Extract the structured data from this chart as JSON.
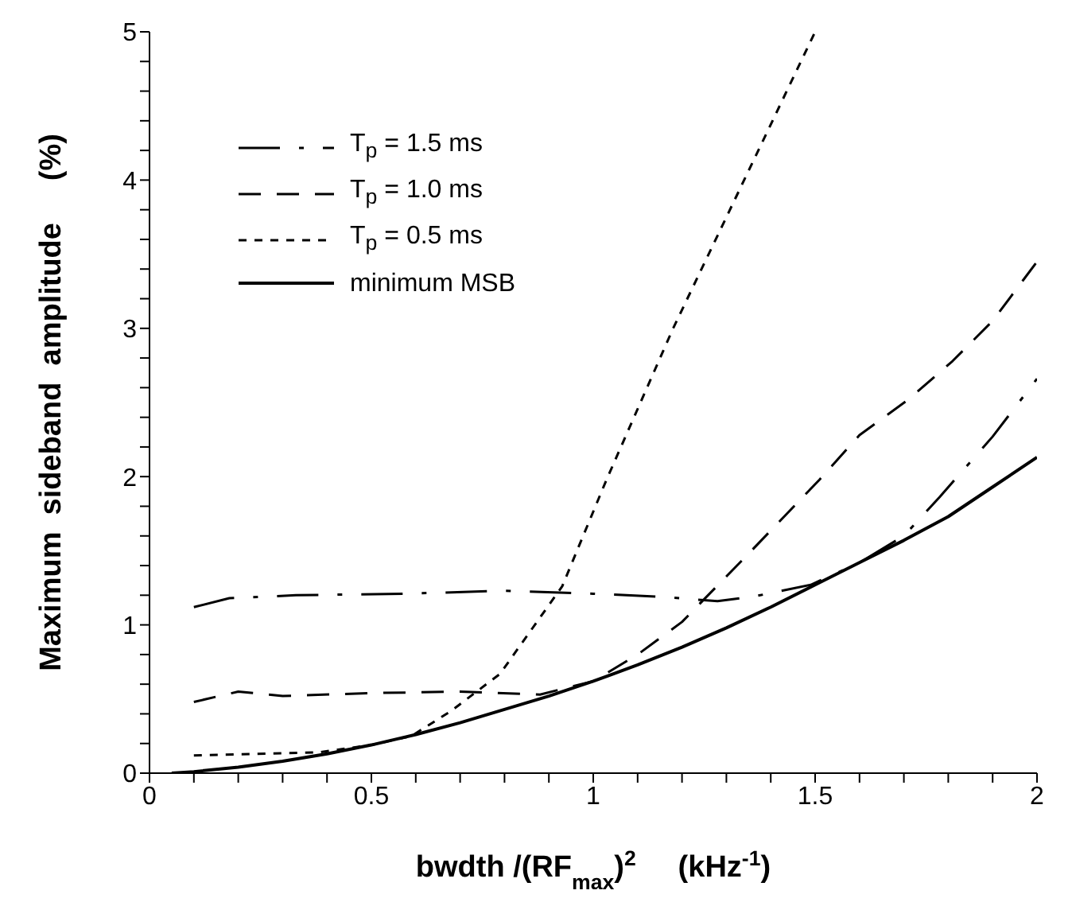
{
  "chart_data": {
    "type": "line",
    "xlabel": "bwdth /(RF$_{max}$)$^{2}$     (kHz$^{-1}$)",
    "ylabel": "Maximum  sideband  amplitude     (%)",
    "xlim": [
      0,
      2
    ],
    "xticks": [
      0,
      {
        "value": 0.1,
        "label": null
      },
      {
        "value": 0.2,
        "label": null
      },
      {
        "value": 0.3,
        "label": null
      },
      {
        "value": 0.4,
        "label": null
      },
      0.5,
      {
        "value": 0.6,
        "label": null
      },
      {
        "value": 0.7,
        "label": null
      },
      {
        "value": 0.8,
        "label": null
      },
      {
        "value": 0.9,
        "label": null
      },
      1,
      {
        "value": 1.1,
        "label": null
      },
      {
        "value": 1.2,
        "label": null
      },
      {
        "value": 1.3,
        "label": null
      },
      {
        "value": 1.4,
        "label": null
      },
      1.5,
      {
        "value": 1.6,
        "label": null
      },
      {
        "value": 1.7,
        "label": null
      },
      {
        "value": 1.8,
        "label": null
      },
      {
        "value": 1.9,
        "label": null
      },
      2
    ],
    "ylim": [
      0,
      5
    ],
    "yticks": [
      0,
      {
        "value": 0.2,
        "label": null
      },
      {
        "value": 0.4,
        "label": null
      },
      {
        "value": 0.6,
        "label": null
      },
      {
        "value": 0.8,
        "label": null
      },
      1,
      {
        "value": 1.2,
        "label": null
      },
      {
        "value": 1.4,
        "label": null
      },
      {
        "value": 1.6,
        "label": null
      },
      {
        "value": 1.8,
        "label": null
      },
      2,
      {
        "value": 2.2,
        "label": null
      },
      {
        "value": 2.4,
        "label": null
      },
      {
        "value": 2.6,
        "label": null
      },
      {
        "value": 2.8,
        "label": null
      },
      3,
      {
        "value": 3.2,
        "label": null
      },
      {
        "value": 3.4,
        "label": null
      },
      {
        "value": 3.6,
        "label": null
      },
      {
        "value": 3.8,
        "label": null
      },
      4,
      {
        "value": 4.2,
        "label": null
      },
      {
        "value": 4.4,
        "label": null
      },
      {
        "value": 4.6,
        "label": null
      },
      {
        "value": 4.8,
        "label": null
      },
      5
    ],
    "grid": false,
    "legend": "top left",
    "marker": "none",
    "series": [
      {
        "name": "T$_{p}$ = 1.5 ms",
        "color": "#000000",
        "line_style": "dashed",
        "x": [
          0.1,
          0.18,
          0.33,
          0.57,
          0.8,
          1.0,
          1.15,
          1.28,
          1.36,
          1.49,
          1.6,
          1.7,
          1.78,
          1.9,
          2.0
        ],
        "values": [
          1.12,
          1.18,
          1.2,
          1.21,
          1.23,
          1.21,
          1.19,
          1.16,
          1.19,
          1.27,
          1.42,
          1.6,
          1.86,
          2.27,
          2.66
        ]
      },
      {
        "name": "T$_{p}$ = 1.0 ms",
        "color": "#000000",
        "line_style": "dashed",
        "x": [
          0.1,
          0.2,
          0.3,
          0.5,
          0.7,
          0.88,
          1.0,
          1.1,
          1.2,
          1.35,
          1.51,
          1.6,
          1.71,
          1.81,
          1.9,
          2.0
        ],
        "values": [
          0.48,
          0.55,
          0.52,
          0.54,
          0.55,
          0.53,
          0.62,
          0.8,
          1.02,
          1.48,
          1.98,
          2.28,
          2.52,
          2.78,
          3.05,
          3.45
        ]
      },
      {
        "name": "T$_{p}$ = 0.5 ms",
        "color": "#000000",
        "line_style": "dotted",
        "x": [
          0.1,
          0.38,
          0.5,
          0.59,
          0.68,
          0.79,
          0.93,
          1.03,
          1.18,
          1.5
        ],
        "values": [
          0.12,
          0.14,
          0.19,
          0.25,
          0.42,
          0.67,
          1.26,
          1.98,
          3.0,
          5.0
        ]
      },
      {
        "name": "minimum  MSB",
        "color": "#000000",
        "line_style": "solid",
        "x": [
          0.05,
          0.1,
          0.2,
          0.3,
          0.4,
          0.5,
          0.6,
          0.7,
          0.8,
          0.9,
          1.0,
          1.1,
          1.2,
          1.3,
          1.4,
          1.5,
          1.6,
          1.7,
          1.8,
          1.9,
          2.0
        ],
        "values": [
          0.0,
          0.01,
          0.04,
          0.08,
          0.13,
          0.19,
          0.26,
          0.34,
          0.43,
          0.52,
          0.62,
          0.73,
          0.85,
          0.98,
          1.12,
          1.27,
          1.42,
          1.57,
          1.73,
          1.93,
          2.13
        ]
      }
    ]
  }
}
